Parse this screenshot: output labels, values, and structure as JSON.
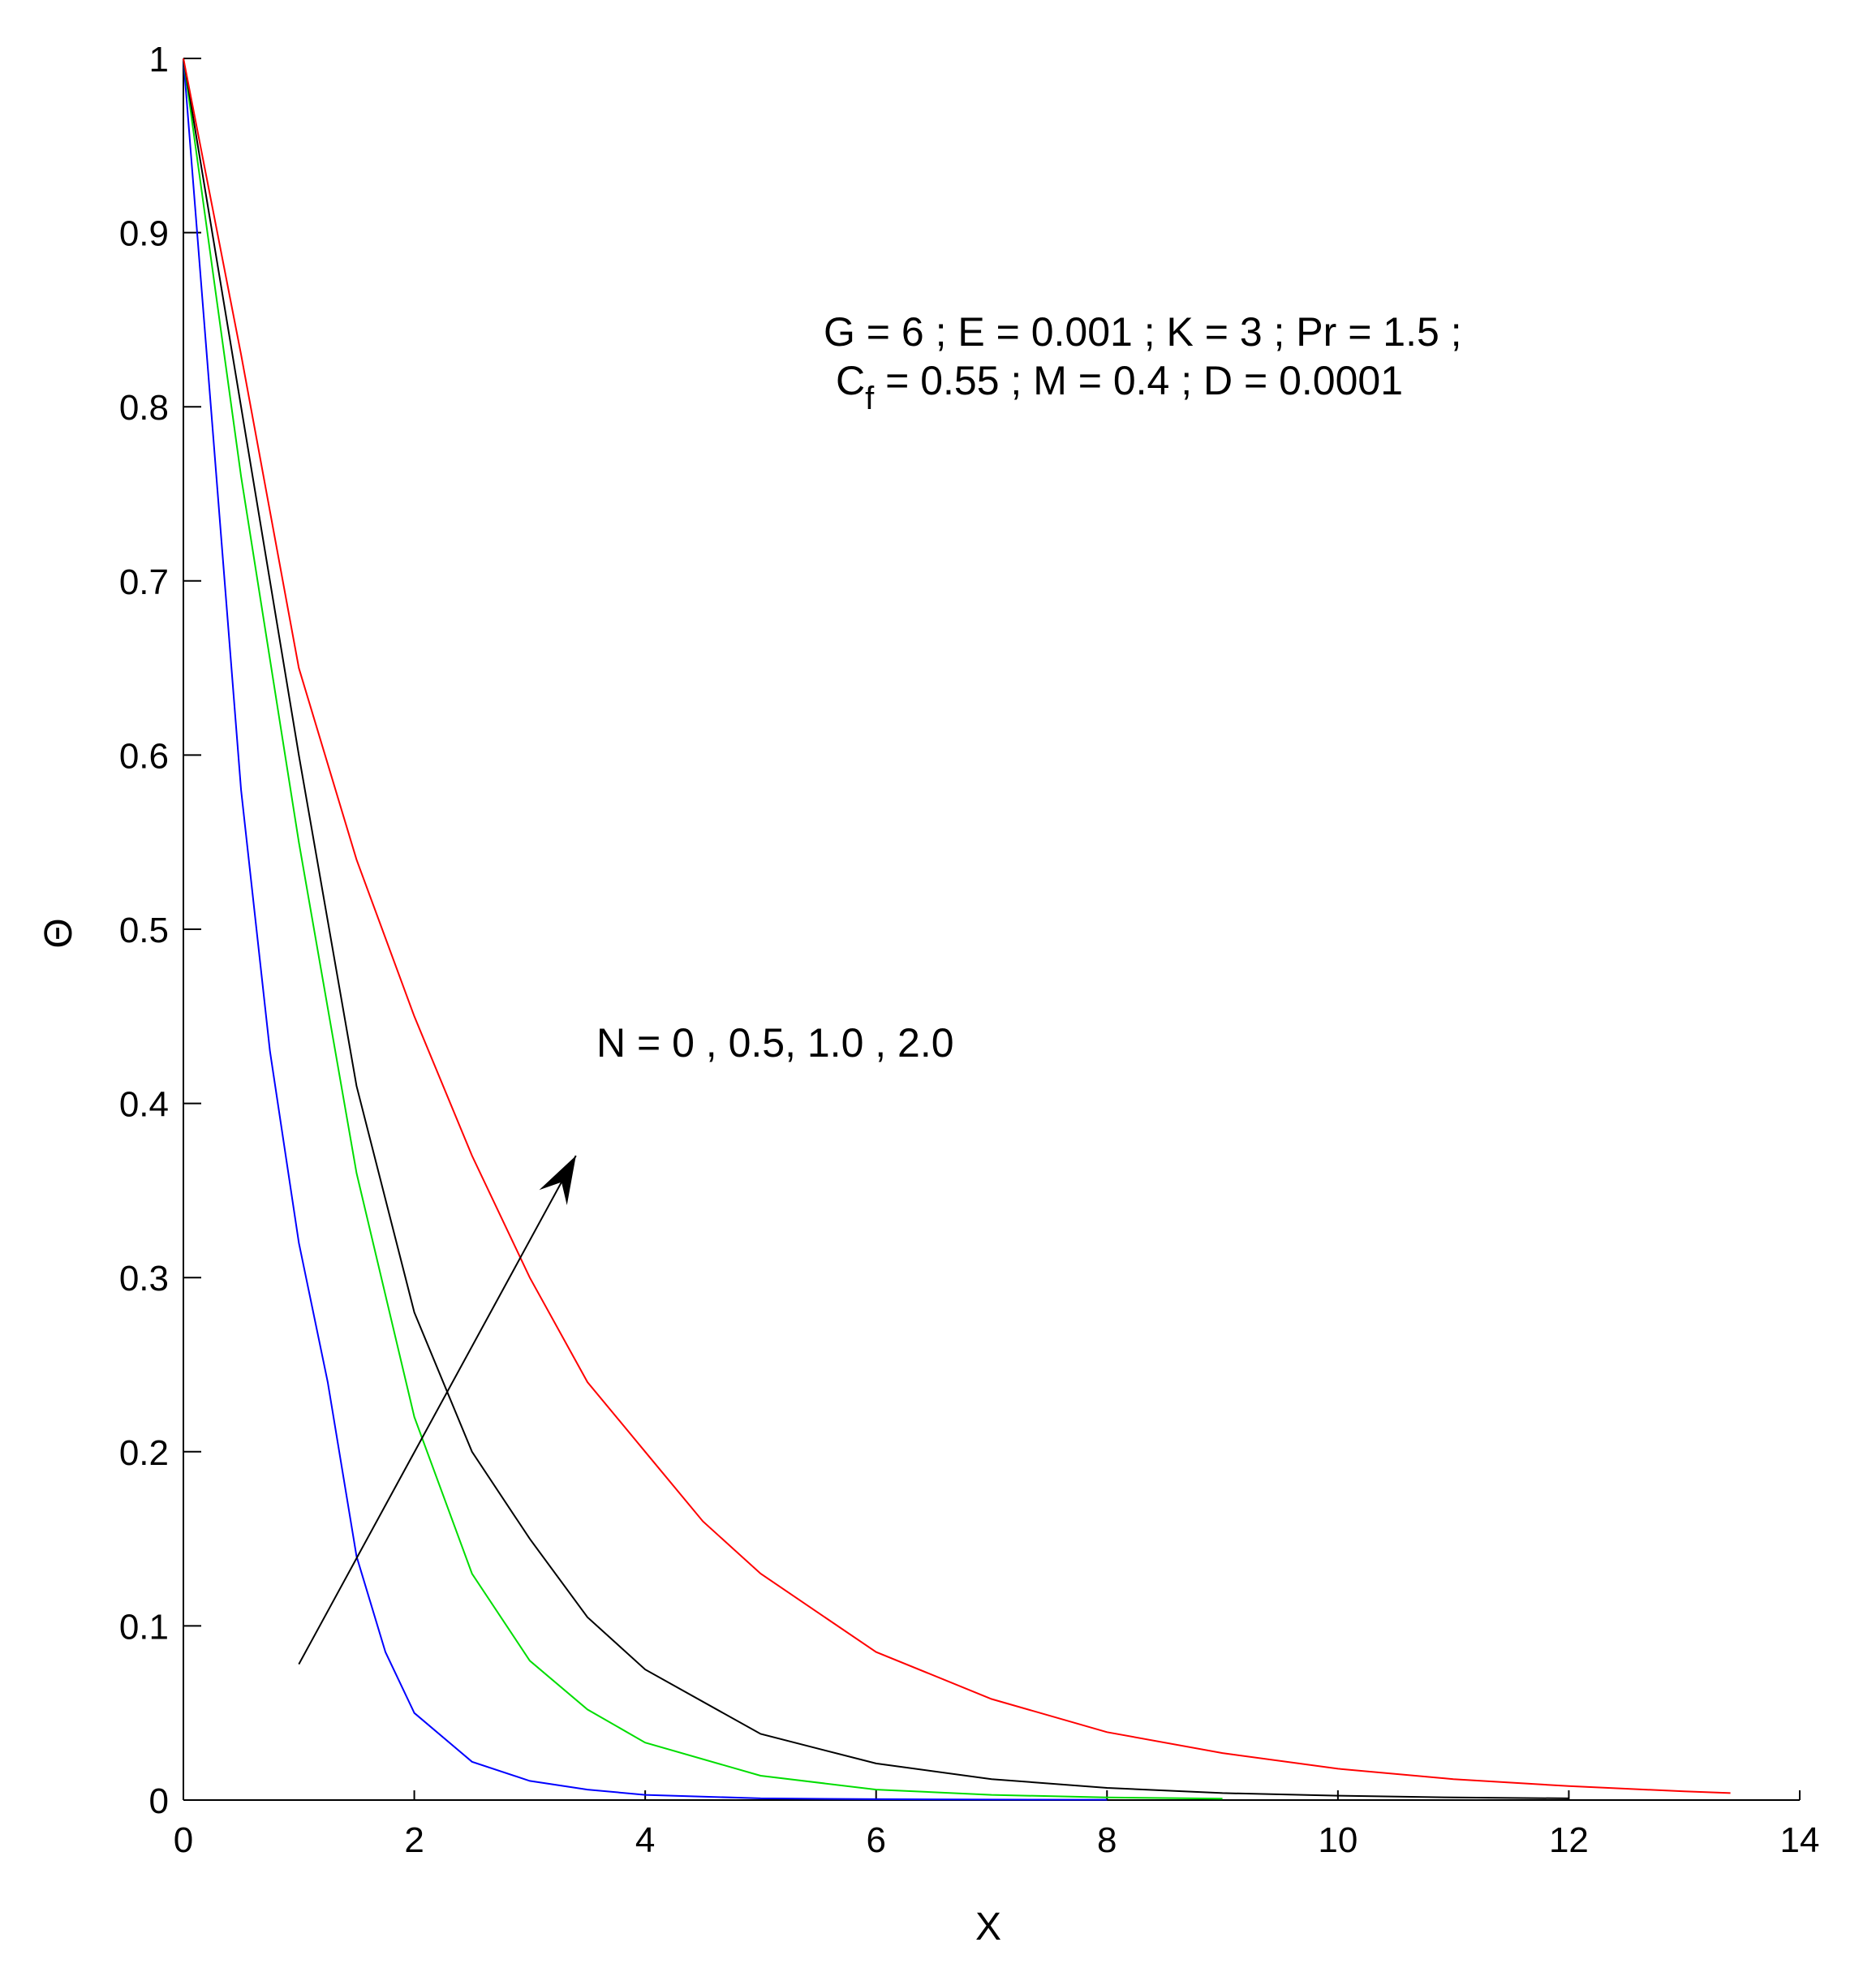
{
  "chart_data": {
    "type": "line",
    "xlabel": "X",
    "ylabel": "Θ",
    "xlim": [
      0,
      14
    ],
    "ylim": [
      0,
      1
    ],
    "xticks": [
      "0",
      "2",
      "4",
      "6",
      "8",
      "10",
      "12",
      "14"
    ],
    "yticks": [
      "0",
      "0.1",
      "0.2",
      "0.3",
      "0.4",
      "0.5",
      "0.6",
      "0.7",
      "0.8",
      "0.9",
      "1"
    ],
    "grid": false,
    "annotations": {
      "params_line1": "G = 6 ;  E = 0.001 ; K = 3 ; Pr = 1.5 ;",
      "params_line2_prefix": "C",
      "params_line2_sub": "f",
      "params_line2_rest": " = 0.55 ; M = 0.4 ; D = 0.0001",
      "n_label": "N = 0 , 0.5,  1.0 , 2.0",
      "arrow": {
        "from": [
          1.0,
          0.078
        ],
        "to": [
          3.4,
          0.37
        ]
      }
    },
    "series": [
      {
        "color": "#0000ff",
        "x": [
          0,
          0.25,
          0.5,
          0.75,
          1.0,
          1.25,
          1.5,
          1.75,
          2.0,
          2.5,
          3.0,
          3.5,
          4.0,
          5.0,
          6.0,
          7.0,
          8.0
        ],
        "y": [
          1.0,
          0.79,
          0.58,
          0.43,
          0.32,
          0.24,
          0.14,
          0.085,
          0.05,
          0.022,
          0.011,
          0.006,
          0.003,
          0.001,
          0.0005,
          0.0003,
          0.0002
        ]
      },
      {
        "color": "#00dd00",
        "x": [
          0,
          0.5,
          1.0,
          1.5,
          2.0,
          2.5,
          3.0,
          3.5,
          4.0,
          5.0,
          6.0,
          7.0,
          8.0,
          9.0
        ],
        "y": [
          1.0,
          0.76,
          0.55,
          0.36,
          0.22,
          0.13,
          0.08,
          0.052,
          0.033,
          0.014,
          0.006,
          0.003,
          0.0015,
          0.0008
        ]
      },
      {
        "color": "#000000",
        "x": [
          0,
          0.5,
          1.0,
          1.5,
          2.0,
          2.5,
          3.0,
          3.5,
          4.0,
          5.0,
          6.0,
          7.0,
          8.0,
          9.0,
          10.0,
          11.0,
          12.0
        ],
        "y": [
          1.0,
          0.8,
          0.6,
          0.41,
          0.28,
          0.2,
          0.15,
          0.105,
          0.075,
          0.038,
          0.021,
          0.012,
          0.007,
          0.004,
          0.0025,
          0.0015,
          0.001
        ]
      },
      {
        "color": "#ff0000",
        "x": [
          0,
          0.5,
          1.0,
          1.5,
          2.0,
          2.5,
          3.0,
          3.5,
          4.0,
          4.5,
          5.0,
          6.0,
          7.0,
          8.0,
          9.0,
          10.0,
          11.0,
          12.0,
          13.0,
          13.4
        ],
        "y": [
          1.0,
          0.83,
          0.65,
          0.54,
          0.45,
          0.37,
          0.3,
          0.24,
          0.2,
          0.16,
          0.13,
          0.085,
          0.058,
          0.039,
          0.027,
          0.018,
          0.012,
          0.008,
          0.005,
          0.004
        ]
      }
    ]
  }
}
